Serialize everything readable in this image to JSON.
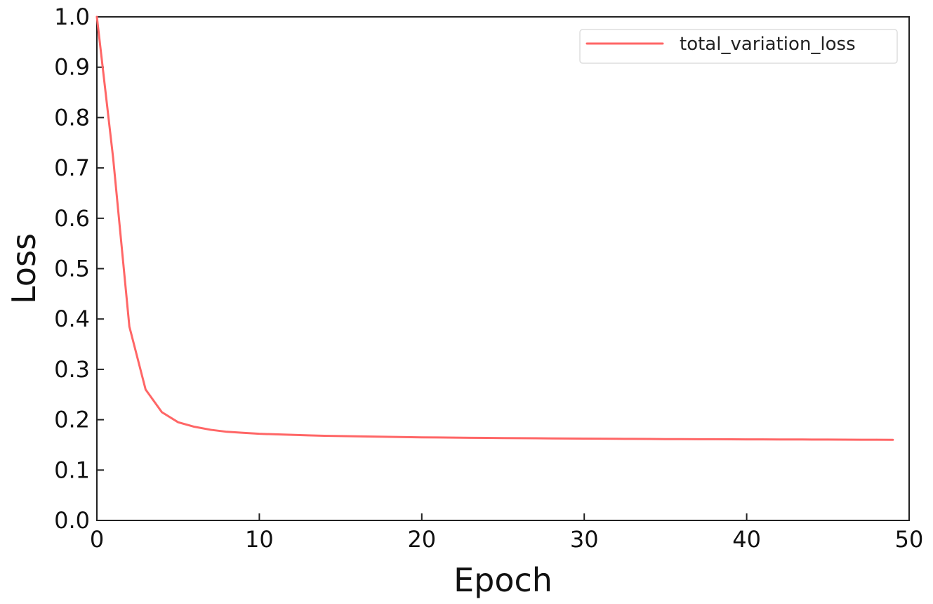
{
  "chart_data": {
    "type": "line",
    "title": "",
    "xlabel": "Epoch",
    "ylabel": "Loss",
    "xlim": [
      0,
      50
    ],
    "ylim": [
      0.0,
      1.0
    ],
    "xticks": [
      "0",
      "10",
      "20",
      "30",
      "40",
      "50"
    ],
    "yticks": [
      "0.0",
      "0.1",
      "0.2",
      "0.3",
      "0.4",
      "0.5",
      "0.6",
      "0.7",
      "0.8",
      "0.9",
      "1.0"
    ],
    "grid": false,
    "legend_position": "top-right",
    "x": [
      0,
      1,
      2,
      3,
      4,
      5,
      6,
      7,
      8,
      9,
      10,
      11,
      12,
      13,
      14,
      15,
      16,
      17,
      18,
      19,
      20,
      21,
      22,
      23,
      24,
      25,
      26,
      27,
      28,
      29,
      30,
      31,
      32,
      33,
      34,
      35,
      36,
      37,
      38,
      39,
      40,
      41,
      42,
      43,
      44,
      45,
      46,
      47,
      48,
      49
    ],
    "series": [
      {
        "name": "total_variation_loss",
        "color": "#ff6666",
        "values": [
          1.0,
          0.72,
          0.385,
          0.26,
          0.215,
          0.195,
          0.186,
          0.18,
          0.176,
          0.174,
          0.172,
          0.171,
          0.17,
          0.169,
          0.168,
          0.1675,
          0.167,
          0.1665,
          0.166,
          0.1655,
          0.165,
          0.1647,
          0.1644,
          0.1641,
          0.1638,
          0.1635,
          0.1633,
          0.1631,
          0.1629,
          0.1627,
          0.1625,
          0.1623,
          0.1621,
          0.1619,
          0.1617,
          0.1615,
          0.1614,
          0.1613,
          0.1612,
          0.1611,
          0.161,
          0.1609,
          0.1608,
          0.1607,
          0.1606,
          0.1605,
          0.1604,
          0.1603,
          0.1602,
          0.16
        ]
      }
    ]
  }
}
